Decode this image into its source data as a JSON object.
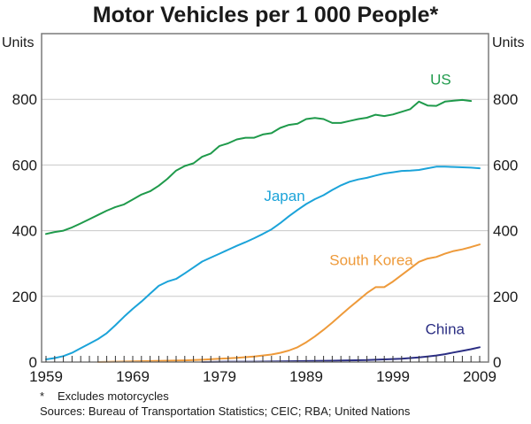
{
  "chart_data": {
    "type": "line",
    "title": "Motor Vehicles per 1 000 People*",
    "xlabel": "",
    "ylabel_left": "Units",
    "ylabel_right": "Units",
    "xlim": [
      1959,
      2009
    ],
    "ylim": [
      0,
      1000
    ],
    "x_ticks": [
      "1959",
      "1969",
      "1979",
      "1989",
      "1999",
      "2009"
    ],
    "y_ticks": [
      "0",
      "200",
      "400",
      "600",
      "800"
    ],
    "grid": true,
    "minor_x_ticks_every_year": true,
    "series": [
      {
        "name": "US",
        "color": "#1f9a4b",
        "x": [
          1959,
          1960,
          1961,
          1962,
          1963,
          1964,
          1965,
          1966,
          1967,
          1968,
          1969,
          1970,
          1971,
          1972,
          1973,
          1974,
          1975,
          1976,
          1977,
          1978,
          1979,
          1980,
          1981,
          1982,
          1983,
          1984,
          1985,
          1986,
          1987,
          1988,
          1989,
          1990,
          1991,
          1992,
          1993,
          1994,
          1995,
          1996,
          1997,
          1998,
          1999,
          2000,
          2001,
          2002,
          2003,
          2004,
          2005,
          2006,
          2007,
          2008
        ],
        "values": [
          390,
          396,
          400,
          410,
          422,
          435,
          448,
          461,
          472,
          480,
          495,
          510,
          520,
          537,
          558,
          583,
          597,
          605,
          625,
          635,
          658,
          666,
          678,
          683,
          683,
          693,
          697,
          713,
          722,
          726,
          740,
          743,
          740,
          728,
          728,
          734,
          740,
          744,
          753,
          749,
          754,
          762,
          770,
          793,
          781,
          780,
          793,
          796,
          798,
          795
        ]
      },
      {
        "name": "Japan",
        "color": "#1ba3d9",
        "x": [
          1959,
          1960,
          1961,
          1962,
          1963,
          1964,
          1965,
          1966,
          1967,
          1968,
          1969,
          1970,
          1971,
          1972,
          1973,
          1974,
          1975,
          1976,
          1977,
          1978,
          1979,
          1980,
          1981,
          1982,
          1983,
          1984,
          1985,
          1986,
          1987,
          1988,
          1989,
          1990,
          1991,
          1992,
          1993,
          1994,
          1995,
          1996,
          1997,
          1998,
          1999,
          2000,
          2001,
          2002,
          2003,
          2004,
          2005,
          2006,
          2007,
          2008,
          2009
        ],
        "values": [
          8,
          12,
          18,
          28,
          42,
          56,
          70,
          88,
          112,
          138,
          162,
          184,
          208,
          232,
          245,
          253,
          270,
          288,
          306,
          318,
          330,
          342,
          354,
          365,
          377,
          390,
          404,
          423,
          444,
          463,
          481,
          496,
          508,
          524,
          538,
          549,
          556,
          561,
          568,
          574,
          578,
          582,
          583,
          585,
          590,
          595,
          595,
          594,
          593,
          592,
          590
        ]
      },
      {
        "name": "South Korea",
        "color": "#ee9a3a",
        "x": [
          1965,
          1967,
          1969,
          1971,
          1973,
          1975,
          1977,
          1979,
          1981,
          1983,
          1985,
          1986,
          1987,
          1988,
          1989,
          1990,
          1991,
          1992,
          1993,
          1994,
          1995,
          1996,
          1997,
          1998,
          1999,
          2000,
          2001,
          2002,
          2003,
          2004,
          2005,
          2006,
          2007,
          2008,
          2009
        ],
        "values": [
          0,
          1,
          2,
          3,
          4,
          5,
          7,
          10,
          13,
          17,
          23,
          28,
          35,
          45,
          60,
          78,
          98,
          120,
          143,
          166,
          188,
          210,
          228,
          228,
          245,
          265,
          285,
          305,
          315,
          320,
          330,
          338,
          343,
          350,
          358
        ]
      },
      {
        "name": "China",
        "color": "#2b2e83",
        "x": [
          1977,
          1980,
          1983,
          1986,
          1989,
          1992,
          1994,
          1996,
          1998,
          2000,
          2002,
          2003,
          2004,
          2005,
          2006,
          2007,
          2008,
          2009
        ],
        "values": [
          0,
          1,
          1,
          2,
          3,
          4,
          5,
          6,
          8,
          10,
          14,
          17,
          20,
          24,
          29,
          34,
          39,
          45
        ]
      }
    ],
    "annotations": [
      {
        "text": "US",
        "series": "US",
        "x": 2004.5,
        "y": 845
      },
      {
        "text": "Japan",
        "series": "Japan",
        "x": 1986.5,
        "y": 490
      },
      {
        "text": "South Korea",
        "series": "South Korea",
        "x": 1996.5,
        "y": 295
      },
      {
        "text": "China",
        "series": "China",
        "x": 2005,
        "y": 85
      }
    ]
  },
  "footnotes": {
    "star": "*",
    "note": "Excludes motorcycles",
    "sources": "Sources: Bureau of Transportation Statistics; CEIC; RBA; United Nations"
  }
}
